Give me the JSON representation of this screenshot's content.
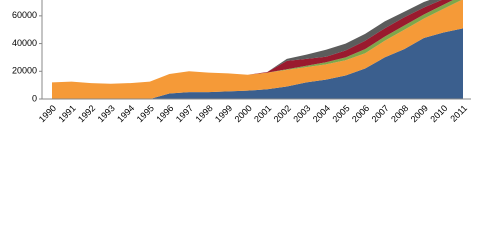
{
  "chart_data": {
    "type": "stacked-area",
    "categories": [
      "1990",
      "1991",
      "1992",
      "1993",
      "1994",
      "1995",
      "1996",
      "1997",
      "1998",
      "1999",
      "2000",
      "2001",
      "2002",
      "2003",
      "2004",
      "2005",
      "2006",
      "2007",
      "2008",
      "2009",
      "2010",
      "2011"
    ],
    "series": [
      {
        "color": "#3b5f8e",
        "values": [
          0,
          0,
          0,
          0,
          0,
          0,
          4000,
          5000,
          5000,
          5500,
          6000,
          7000,
          9000,
          12000,
          14000,
          17000,
          22000,
          30000,
          36000,
          44000,
          48000,
          51000
        ]
      },
      {
        "color": "#f59a38",
        "values": [
          12000,
          12500,
          11500,
          11000,
          11500,
          12500,
          14000,
          15000,
          14000,
          13000,
          11500,
          12000,
          12000,
          11000,
          11000,
          11000,
          11000,
          12000,
          14000,
          14000,
          17000,
          21000
        ]
      },
      {
        "color": "#7ea64a",
        "values": [
          0,
          0,
          0,
          0,
          0,
          0,
          0,
          0,
          0,
          0,
          0,
          0,
          500,
          1000,
          1500,
          2000,
          3000,
          3000,
          3000,
          3000,
          3000,
          3000
        ]
      },
      {
        "color": "#9a1a2e",
        "values": [
          0,
          0,
          0,
          0,
          0,
          0,
          0,
          0,
          0,
          0,
          0,
          500,
          6000,
          5000,
          4000,
          5000,
          6000,
          6000,
          6000,
          5000,
          4000,
          3000
        ]
      },
      {
        "color": "#5c5c5c",
        "values": [
          0,
          0,
          0,
          0,
          0,
          0,
          0,
          0,
          0,
          0,
          0,
          0,
          1500,
          3000,
          5000,
          5000,
          5000,
          5000,
          4000,
          4000,
          3000,
          2000
        ]
      }
    ],
    "ylim": [
      0,
      70000
    ],
    "yticks": [
      0,
      20000,
      40000,
      60000
    ],
    "grid": false
  }
}
